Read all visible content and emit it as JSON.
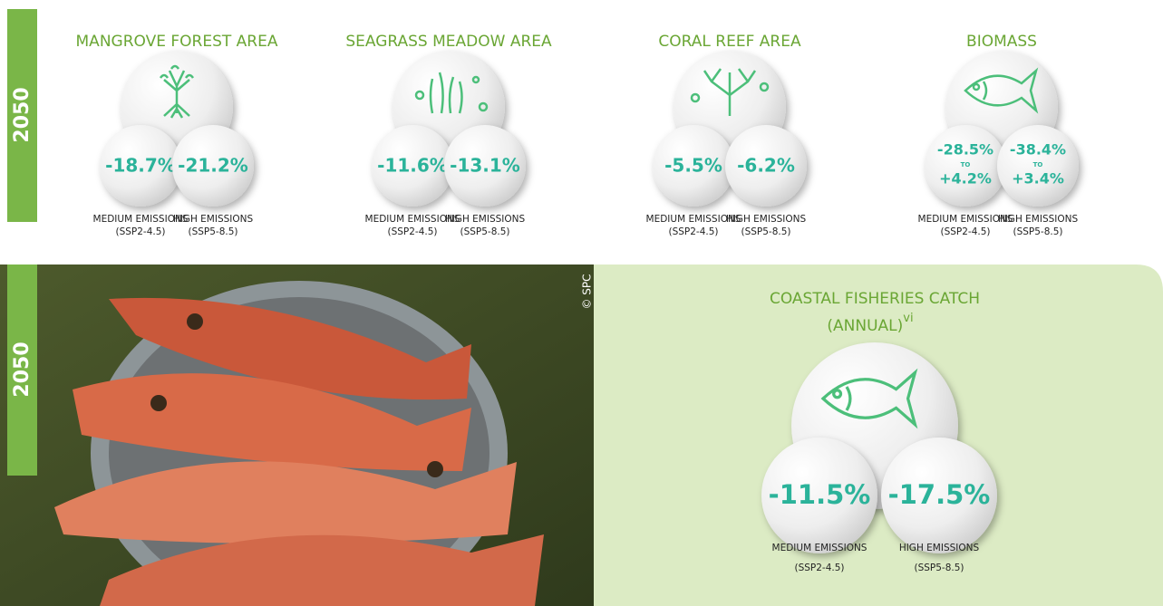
{
  "top": {
    "year": "2050",
    "items": [
      {
        "title": "MANGROVE FOREST AREA",
        "values": [
          "-18.7%",
          "-21.2%"
        ]
      },
      {
        "title": "SEAGRASS MEADOW AREA",
        "values": [
          "-11.6%",
          "-13.1%"
        ]
      },
      {
        "title": "CORAL REEF AREA",
        "values": [
          "-5.5%",
          "-6.2%"
        ]
      },
      {
        "title": "BIOMASS",
        "values": [
          {
            "low": "-28.5%",
            "to": "TO",
            "high": "+4.2%"
          },
          {
            "low": "-38.4%",
            "to": "TO",
            "high": "+3.4%"
          }
        ]
      }
    ],
    "scenarios": [
      {
        "name": "MEDIUM EMISSIONS",
        "code": "(SSP2-4.5)"
      },
      {
        "name": "HIGH EMISSIONS",
        "code": "(SSP5-8.5)"
      }
    ]
  },
  "bottom": {
    "year": "2050",
    "credit": "© SPC",
    "title": "COASTAL FISHERIES CATCH",
    "subtitle": "(ANNUAL)",
    "note": "vi",
    "values": [
      "-11.5%",
      "-17.5%"
    ]
  }
}
